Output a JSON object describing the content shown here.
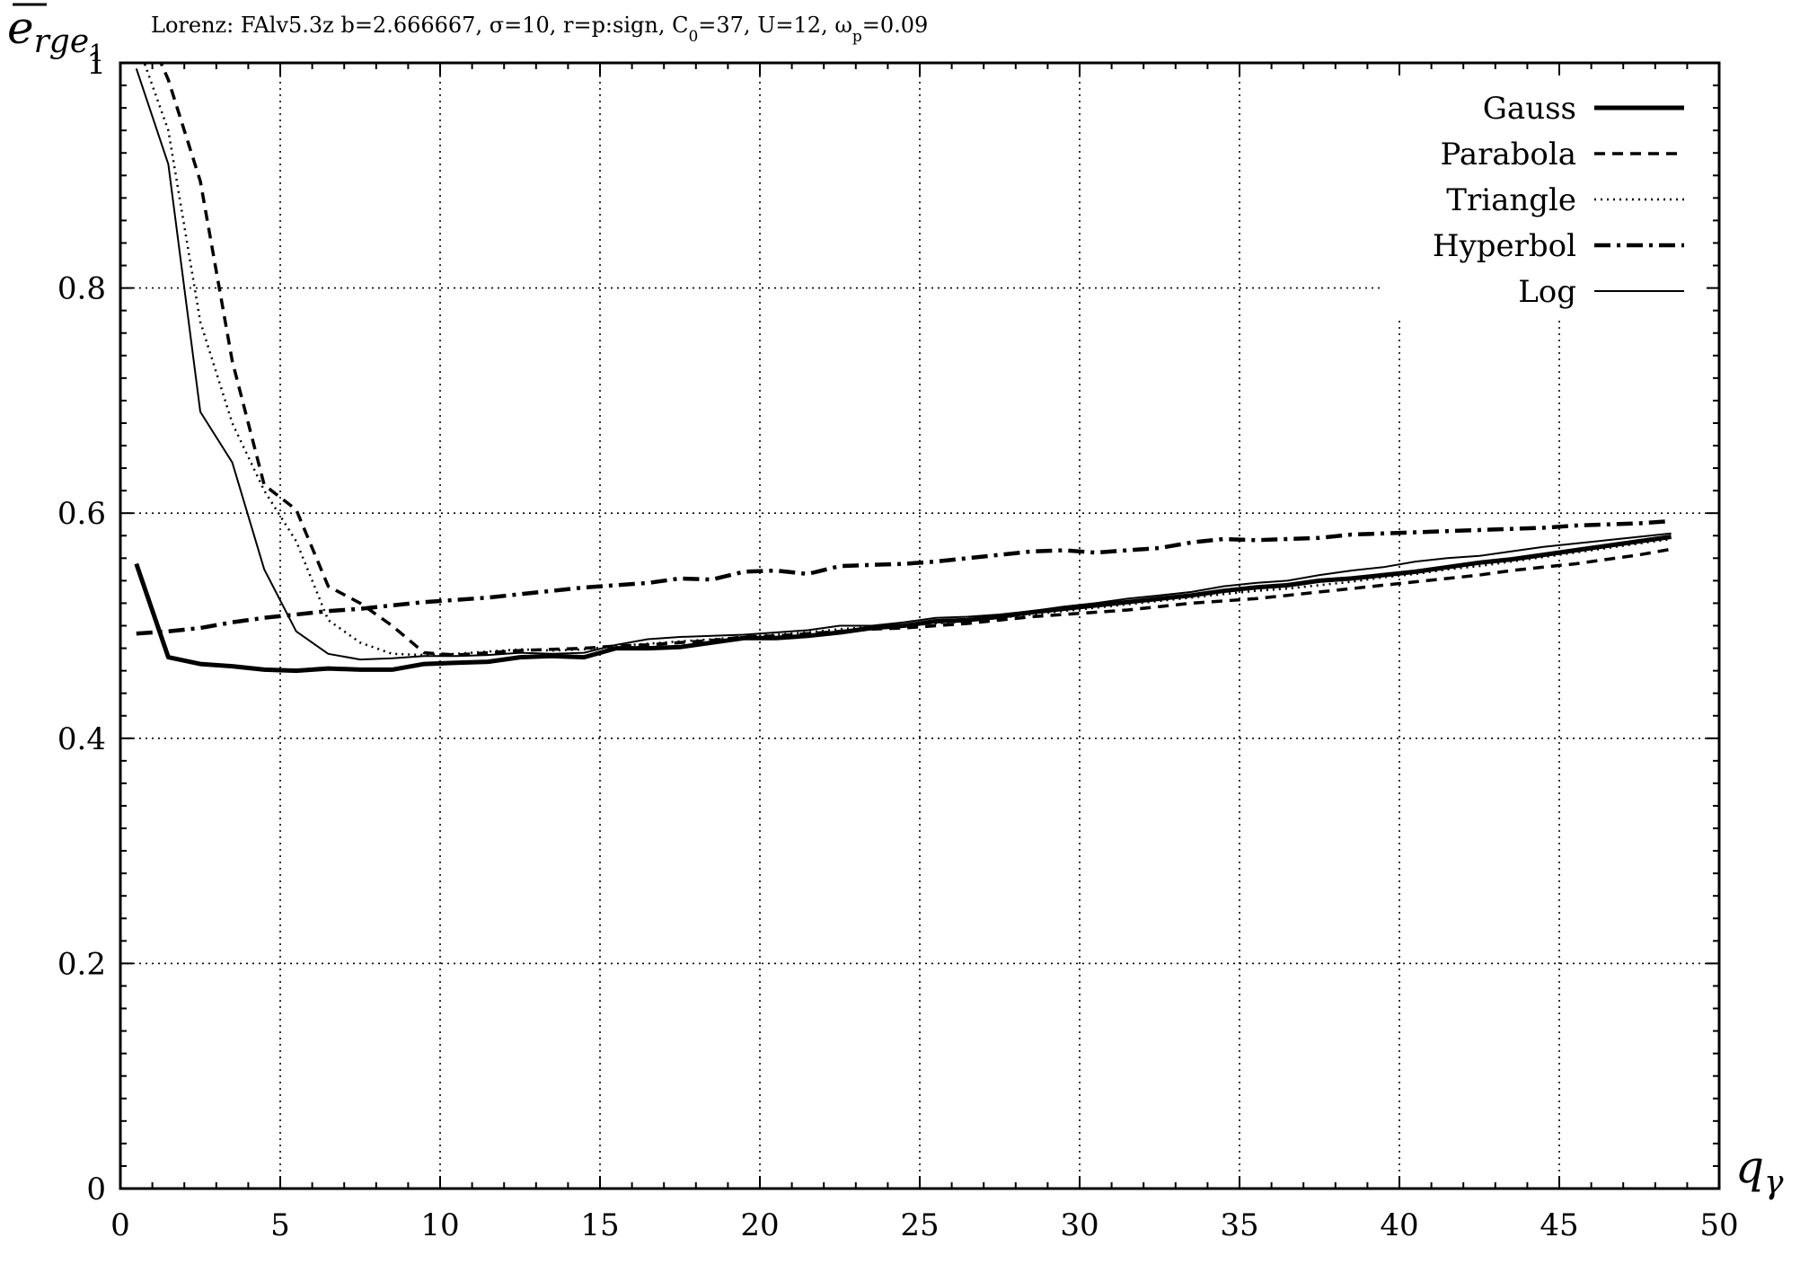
{
  "chart_data": {
    "type": "line",
    "title": "Lorenz: FAlv5.3z b=2.666667, σ=10, r=p:sign, C0=37, U=12, ωp=0.09",
    "title_parts": {
      "pre": "Lorenz: FAlv5.3z b=2.666667, σ=10, r=p:sign, C",
      "c_sub": "0",
      "mid": "=37, U=12, ω",
      "w_sub": "p",
      "post": "=0.09"
    },
    "xlabel": {
      "base": "q",
      "sub": "γ"
    },
    "ylabel": {
      "base": "e",
      "sub": "rge",
      "subsub": "1"
    },
    "xlim": [
      0,
      50
    ],
    "ylim": [
      0,
      1
    ],
    "x_ticks": [
      "0",
      "5",
      "10",
      "15",
      "20",
      "25",
      "30",
      "35",
      "40",
      "45",
      "50"
    ],
    "y_ticks": [
      "0",
      "0.2",
      "0.4",
      "0.6",
      "0.8",
      "1"
    ],
    "grid": true,
    "legend_position": "top-right",
    "series": [
      {
        "name": "Gauss",
        "style": "thick-solid",
        "x": [
          0.5,
          1.5,
          2.5,
          3.5,
          4.5,
          5.5,
          6.5,
          7.5,
          8.5,
          9.5,
          10.5,
          11.5,
          12.5,
          13.5,
          14.5,
          15.5,
          16.5,
          17.5,
          18.5,
          19.5,
          20.5,
          21.5,
          22.5,
          23.5,
          24.5,
          25.5,
          26.5,
          27.5,
          28.5,
          29.5,
          30.5,
          31.5,
          32.5,
          33.5,
          34.5,
          35.5,
          36.5,
          37.5,
          38.5,
          39.5,
          40.5,
          41.5,
          42.5,
          43.5,
          44.5,
          45.5,
          46.5,
          47.5,
          48.5
        ],
        "y": [
          0.555,
          0.472,
          0.466,
          0.464,
          0.461,
          0.46,
          0.462,
          0.461,
          0.461,
          0.466,
          0.467,
          0.468,
          0.472,
          0.473,
          0.472,
          0.48,
          0.48,
          0.481,
          0.485,
          0.489,
          0.489,
          0.491,
          0.494,
          0.498,
          0.5,
          0.504,
          0.505,
          0.508,
          0.512,
          0.515,
          0.518,
          0.521,
          0.524,
          0.527,
          0.531,
          0.534,
          0.536,
          0.54,
          0.542,
          0.545,
          0.548,
          0.552,
          0.556,
          0.559,
          0.563,
          0.567,
          0.571,
          0.575,
          0.579
        ]
      },
      {
        "name": "Parabola",
        "style": "dashed",
        "x": [
          0.5,
          1.5,
          2.5,
          3.5,
          4.5,
          5.5,
          6.5,
          7.5,
          8.5,
          9.5,
          10.5,
          11.5,
          12.5,
          13.5,
          14.5,
          15.5,
          16.5,
          17.5,
          18.5,
          19.5,
          20.5,
          21.5,
          22.5,
          23.5,
          24.5,
          25.5,
          26.5,
          27.5,
          28.5,
          29.5,
          30.5,
          31.5,
          32.5,
          33.5,
          34.5,
          35.5,
          36.5,
          37.5,
          38.5,
          39.5,
          40.5,
          41.5,
          42.5,
          43.5,
          44.5,
          45.5,
          46.5,
          47.5,
          48.5
        ],
        "y": [
          1.05,
          0.985,
          0.895,
          0.735,
          0.625,
          0.603,
          0.535,
          0.52,
          0.5,
          0.476,
          0.474,
          0.476,
          0.478,
          0.479,
          0.48,
          0.482,
          0.483,
          0.485,
          0.487,
          0.49,
          0.491,
          0.493,
          0.495,
          0.497,
          0.498,
          0.5,
          0.502,
          0.505,
          0.508,
          0.51,
          0.512,
          0.514,
          0.517,
          0.52,
          0.522,
          0.524,
          0.527,
          0.53,
          0.533,
          0.536,
          0.539,
          0.542,
          0.545,
          0.549,
          0.552,
          0.555,
          0.559,
          0.563,
          0.568
        ]
      },
      {
        "name": "Triangle",
        "style": "dotted",
        "x": [
          0.5,
          1.5,
          2.5,
          3.5,
          4.5,
          5.5,
          6.5,
          7.5,
          8.5,
          9.5,
          10.5,
          11.5,
          12.5,
          13.5,
          14.5,
          15.5,
          16.5,
          17.5,
          18.5,
          19.5,
          20.5,
          21.5,
          22.5,
          23.5,
          24.5,
          25.5,
          26.5,
          27.5,
          28.5,
          29.5,
          30.5,
          31.5,
          32.5,
          33.5,
          34.5,
          35.5,
          36.5,
          37.5,
          38.5,
          39.5,
          40.5,
          41.5,
          42.5,
          43.5,
          44.5,
          45.5,
          46.5,
          47.5,
          48.5
        ],
        "y": [
          1.02,
          0.94,
          0.77,
          0.68,
          0.62,
          0.575,
          0.505,
          0.485,
          0.475,
          0.474,
          0.475,
          0.477,
          0.479,
          0.478,
          0.479,
          0.482,
          0.484,
          0.486,
          0.488,
          0.49,
          0.492,
          0.494,
          0.497,
          0.499,
          0.5,
          0.502,
          0.504,
          0.507,
          0.51,
          0.513,
          0.516,
          0.519,
          0.522,
          0.525,
          0.528,
          0.531,
          0.533,
          0.536,
          0.539,
          0.543,
          0.546,
          0.55,
          0.553,
          0.557,
          0.561,
          0.565,
          0.569,
          0.573,
          0.577
        ]
      },
      {
        "name": "Hyperbol",
        "style": "dash-dot",
        "x": [
          0.5,
          1.5,
          2.5,
          3.5,
          4.5,
          5.5,
          6.5,
          7.5,
          8.5,
          9.5,
          10.5,
          11.5,
          12.5,
          13.5,
          14.5,
          15.5,
          16.5,
          17.5,
          18.5,
          19.5,
          20.5,
          21.5,
          22.5,
          23.5,
          24.5,
          25.5,
          26.5,
          27.5,
          28.5,
          29.5,
          30.5,
          31.5,
          32.5,
          33.5,
          34.5,
          35.5,
          36.5,
          37.5,
          38.5,
          39.5,
          40.5,
          41.5,
          42.5,
          43.5,
          44.5,
          45.5,
          46.5,
          47.5,
          48.5
        ],
        "y": [
          0.493,
          0.495,
          0.498,
          0.503,
          0.507,
          0.51,
          0.513,
          0.515,
          0.518,
          0.521,
          0.523,
          0.525,
          0.528,
          0.531,
          0.534,
          0.536,
          0.538,
          0.542,
          0.541,
          0.548,
          0.549,
          0.546,
          0.553,
          0.554,
          0.555,
          0.557,
          0.56,
          0.563,
          0.566,
          0.567,
          0.565,
          0.567,
          0.569,
          0.574,
          0.577,
          0.576,
          0.577,
          0.578,
          0.581,
          0.582,
          0.583,
          0.584,
          0.585,
          0.586,
          0.587,
          0.589,
          0.59,
          0.591,
          0.593
        ]
      },
      {
        "name": "Log",
        "style": "thin-solid",
        "x": [
          0.5,
          1.5,
          2.5,
          3.5,
          4.5,
          5.5,
          6.5,
          7.5,
          8.5,
          9.5,
          10.5,
          11.5,
          12.5,
          13.5,
          14.5,
          15.5,
          16.5,
          17.5,
          18.5,
          19.5,
          20.5,
          21.5,
          22.5,
          23.5,
          24.5,
          25.5,
          26.5,
          27.5,
          28.5,
          29.5,
          30.5,
          31.5,
          32.5,
          33.5,
          34.5,
          35.5,
          36.5,
          37.5,
          38.5,
          39.5,
          40.5,
          41.5,
          42.5,
          43.5,
          44.5,
          45.5,
          46.5,
          47.5,
          48.5
        ],
        "y": [
          0.995,
          0.91,
          0.69,
          0.645,
          0.55,
          0.495,
          0.475,
          0.47,
          0.471,
          0.473,
          0.473,
          0.474,
          0.476,
          0.475,
          0.476,
          0.483,
          0.488,
          0.49,
          0.491,
          0.492,
          0.494,
          0.496,
          0.5,
          0.5,
          0.503,
          0.507,
          0.508,
          0.51,
          0.513,
          0.517,
          0.52,
          0.524,
          0.527,
          0.53,
          0.535,
          0.538,
          0.54,
          0.545,
          0.549,
          0.552,
          0.557,
          0.56,
          0.562,
          0.566,
          0.57,
          0.573,
          0.576,
          0.579,
          0.582
        ]
      }
    ]
  }
}
